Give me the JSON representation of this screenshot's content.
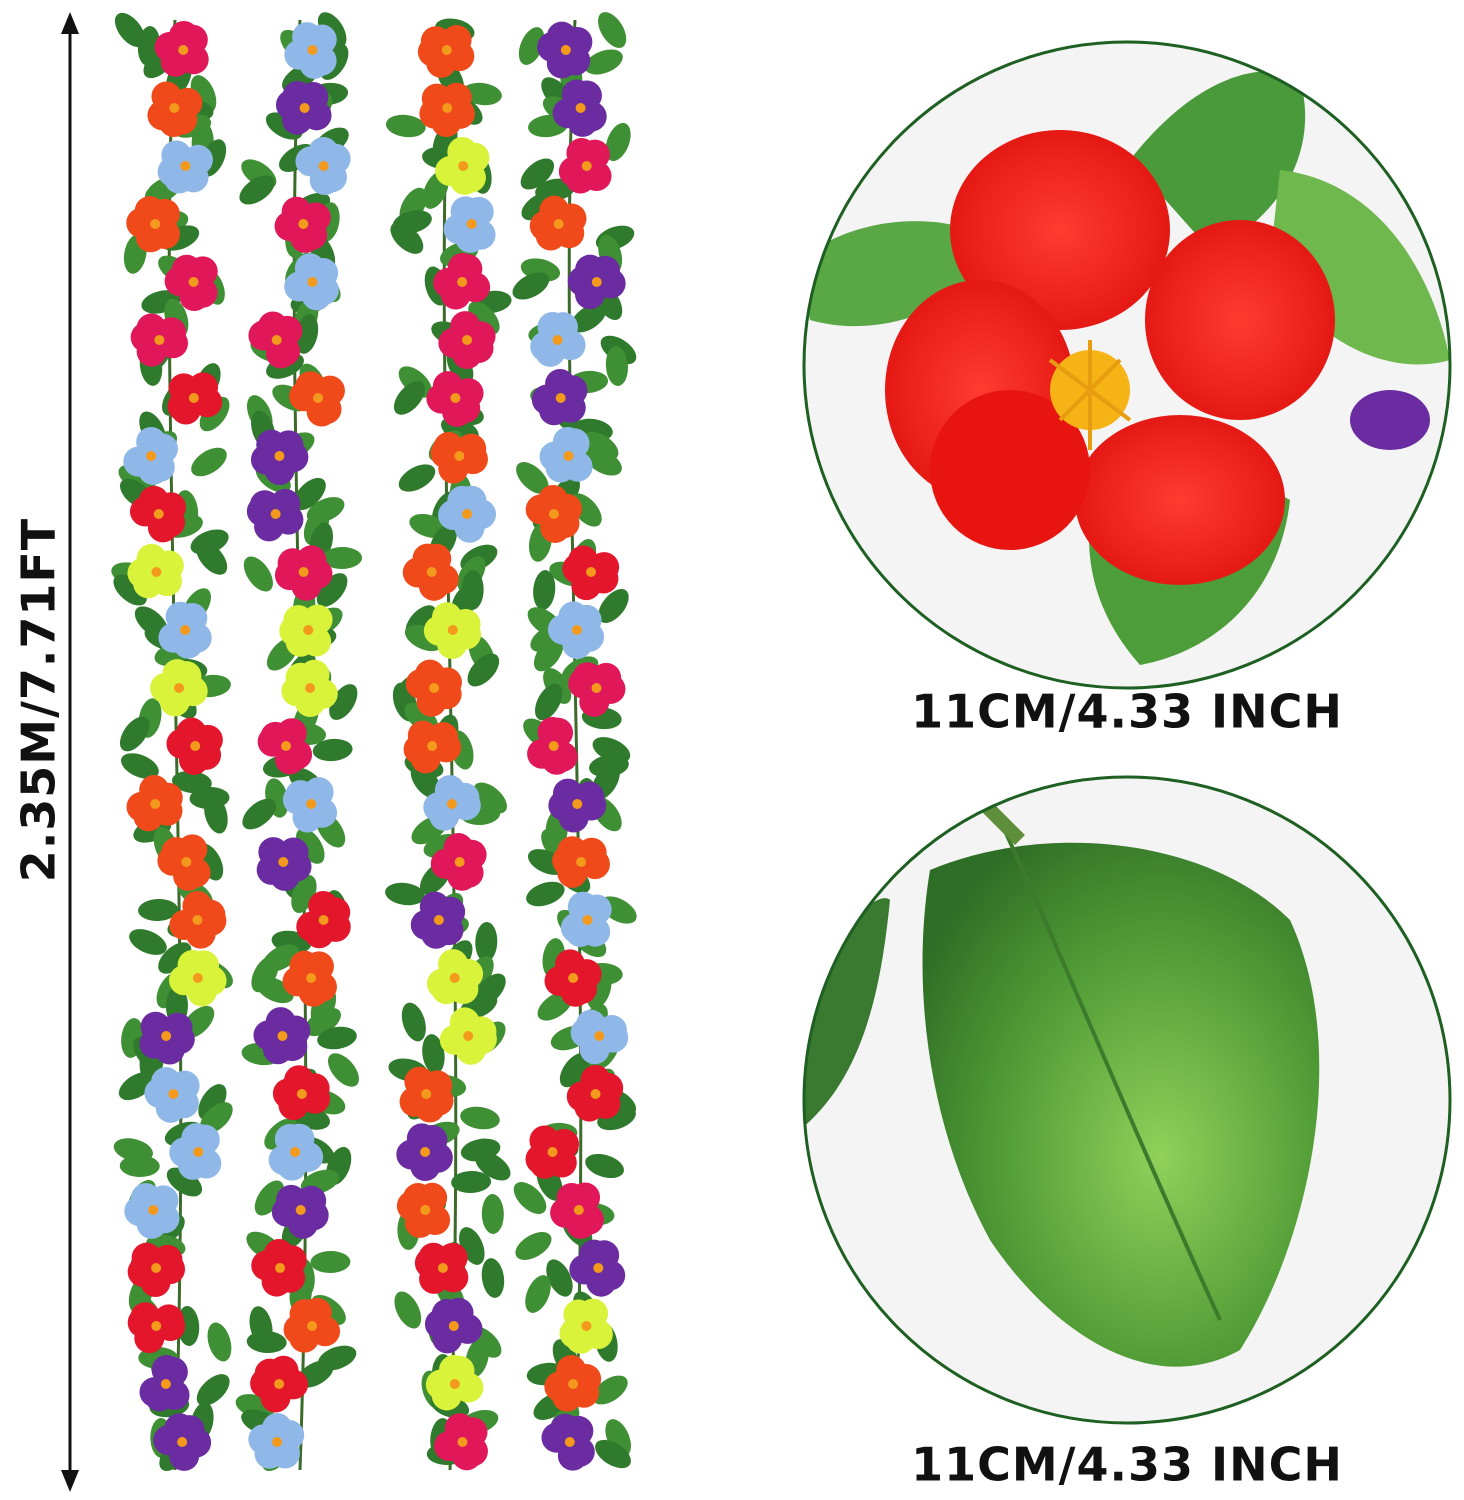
{
  "dimension_label": "2.35M/7.71FT",
  "flower_size_label": "11CM/4.33 INCH",
  "leaf_size_label": "11CM/4.33 INCH"
}
